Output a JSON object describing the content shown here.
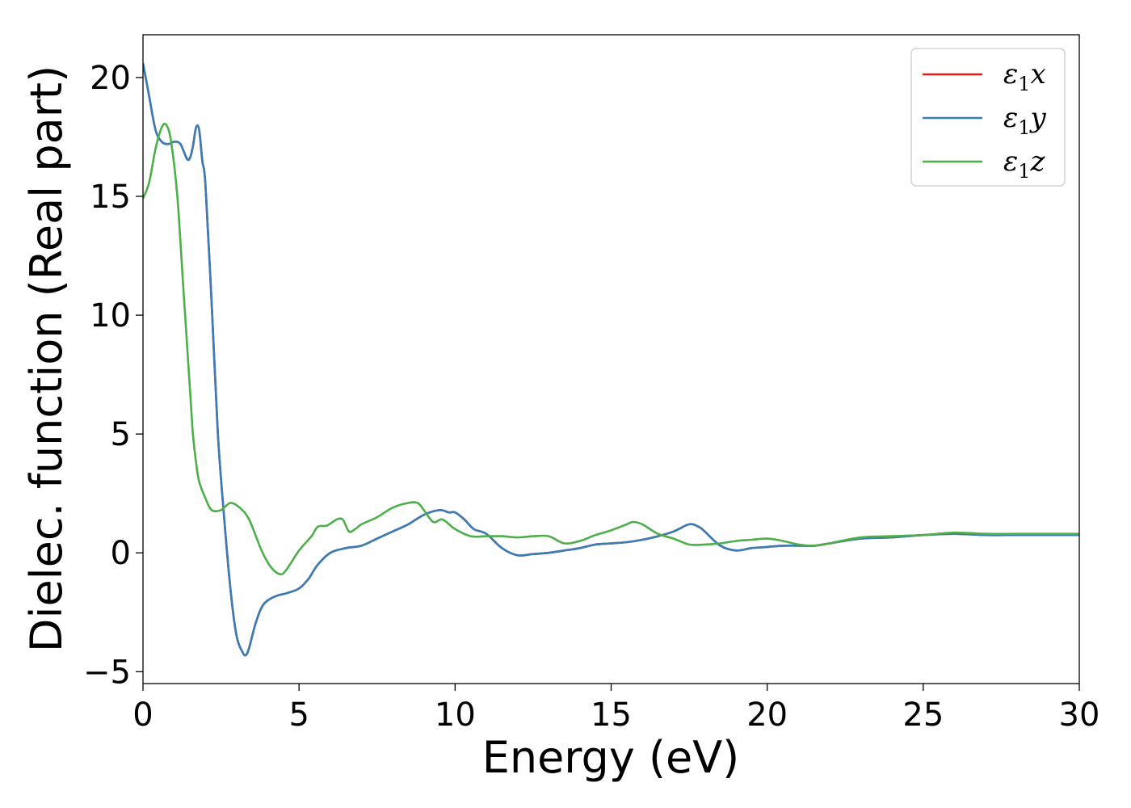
{
  "chart_data": {
    "type": "line",
    "title": "",
    "xlabel": "Energy (eV)",
    "ylabel": "Dielec. function (Real part)",
    "xlim": [
      0,
      30
    ],
    "ylim": [
      -5.5,
      21.8
    ],
    "xticks": [
      0,
      5,
      10,
      15,
      20,
      25,
      30
    ],
    "xtick_labels": [
      "0",
      "5",
      "10",
      "15",
      "20",
      "25",
      "30"
    ],
    "yticks": [
      -5,
      0,
      5,
      10,
      15,
      20
    ],
    "ytick_labels": [
      "−5",
      "0",
      "5",
      "10",
      "15",
      "20"
    ],
    "grid": false,
    "legend_position": "top-right",
    "colors": {
      "x": "#e41a1c",
      "y": "#377eb8",
      "z": "#4daf4a"
    },
    "series": [
      {
        "name": "ε₁x",
        "legend_base": "ε",
        "legend_sub": "1",
        "legend_suffix": "x",
        "color": "#e41a1c",
        "x": [
          0,
          0.2,
          0.4,
          0.6,
          0.8,
          1.0,
          1.2,
          1.4,
          1.5,
          1.6,
          1.7,
          1.8,
          1.9,
          2.0,
          2.2,
          2.4,
          2.6,
          2.8,
          3.0,
          3.2,
          3.3,
          3.4,
          3.6,
          3.8,
          4.0,
          4.3,
          4.6,
          5.0,
          5.3,
          5.6,
          6.0,
          6.5,
          7.0,
          7.5,
          8.0,
          8.5,
          9.0,
          9.5,
          9.8,
          10.0,
          10.3,
          10.6,
          11.0,
          11.5,
          12.0,
          12.5,
          13.0,
          13.5,
          14.0,
          14.5,
          15.0,
          15.5,
          16.0,
          16.5,
          17.0,
          17.5,
          17.8,
          18.0,
          18.5,
          19.0,
          19.5,
          20.0,
          20.5,
          21.0,
          21.5,
          22.0,
          23.0,
          24.0,
          25.0,
          26.0,
          27.0,
          28.0,
          29.0,
          30.0
        ],
        "values": [
          20.6,
          19.2,
          17.8,
          17.3,
          17.2,
          17.3,
          17.2,
          16.6,
          16.6,
          17.1,
          17.9,
          17.8,
          16.5,
          15.5,
          10.5,
          5.0,
          1.5,
          -1.5,
          -3.5,
          -4.2,
          -4.3,
          -4.0,
          -3.0,
          -2.3,
          -2.0,
          -1.8,
          -1.7,
          -1.5,
          -1.1,
          -0.5,
          0.0,
          0.2,
          0.3,
          0.6,
          0.9,
          1.2,
          1.6,
          1.8,
          1.7,
          1.7,
          1.4,
          1.0,
          0.8,
          0.2,
          -0.1,
          -0.05,
          0.0,
          0.1,
          0.2,
          0.35,
          0.4,
          0.45,
          0.55,
          0.7,
          0.9,
          1.2,
          1.1,
          0.9,
          0.3,
          0.1,
          0.2,
          0.25,
          0.3,
          0.3,
          0.3,
          0.4,
          0.6,
          0.65,
          0.75,
          0.8,
          0.75,
          0.75,
          0.75,
          0.75
        ]
      },
      {
        "name": "ε₁y",
        "legend_base": "ε",
        "legend_sub": "1",
        "legend_suffix": "y",
        "color": "#377eb8",
        "x": [
          0,
          0.2,
          0.4,
          0.6,
          0.8,
          1.0,
          1.2,
          1.4,
          1.5,
          1.6,
          1.7,
          1.8,
          1.9,
          2.0,
          2.2,
          2.4,
          2.6,
          2.8,
          3.0,
          3.2,
          3.3,
          3.4,
          3.6,
          3.8,
          4.0,
          4.3,
          4.6,
          5.0,
          5.3,
          5.6,
          6.0,
          6.5,
          7.0,
          7.5,
          8.0,
          8.5,
          9.0,
          9.5,
          9.8,
          10.0,
          10.3,
          10.6,
          11.0,
          11.5,
          12.0,
          12.5,
          13.0,
          13.5,
          14.0,
          14.5,
          15.0,
          15.5,
          16.0,
          16.5,
          17.0,
          17.5,
          17.8,
          18.0,
          18.5,
          19.0,
          19.5,
          20.0,
          20.5,
          21.0,
          21.5,
          22.0,
          23.0,
          24.0,
          25.0,
          26.0,
          27.0,
          28.0,
          29.0,
          30.0
        ],
        "values": [
          20.6,
          19.2,
          17.8,
          17.3,
          17.2,
          17.3,
          17.2,
          16.6,
          16.6,
          17.1,
          17.9,
          17.8,
          16.5,
          15.5,
          10.5,
          5.0,
          1.5,
          -1.5,
          -3.5,
          -4.2,
          -4.3,
          -4.0,
          -3.0,
          -2.3,
          -2.0,
          -1.8,
          -1.7,
          -1.5,
          -1.1,
          -0.5,
          0.0,
          0.2,
          0.3,
          0.6,
          0.9,
          1.2,
          1.6,
          1.8,
          1.7,
          1.7,
          1.4,
          1.0,
          0.8,
          0.2,
          -0.1,
          -0.05,
          0.0,
          0.1,
          0.2,
          0.35,
          0.4,
          0.45,
          0.55,
          0.7,
          0.9,
          1.2,
          1.1,
          0.9,
          0.3,
          0.1,
          0.2,
          0.25,
          0.3,
          0.3,
          0.3,
          0.4,
          0.6,
          0.65,
          0.75,
          0.8,
          0.75,
          0.75,
          0.75,
          0.75
        ]
      },
      {
        "name": "ε₁z",
        "legend_base": "ε",
        "legend_sub": "1",
        "legend_suffix": "z",
        "color": "#4daf4a",
        "x": [
          0,
          0.2,
          0.4,
          0.6,
          0.75,
          0.9,
          1.1,
          1.3,
          1.5,
          1.6,
          1.7,
          1.8,
          2.0,
          2.2,
          2.5,
          2.8,
          3.1,
          3.4,
          3.8,
          4.1,
          4.4,
          4.6,
          5.0,
          5.4,
          5.6,
          5.9,
          6.2,
          6.4,
          6.6,
          6.8,
          7.0,
          7.5,
          8.0,
          8.5,
          8.8,
          9.0,
          9.3,
          9.6,
          10.0,
          10.5,
          11.0,
          11.5,
          12.0,
          12.5,
          13.0,
          13.5,
          14.0,
          14.5,
          15.0,
          15.5,
          15.7,
          16.0,
          16.5,
          17.0,
          17.5,
          18.0,
          18.5,
          19.0,
          19.5,
          20.0,
          20.5,
          21.0,
          21.5,
          22.0,
          23.0,
          24.0,
          25.0,
          26.0,
          27.0,
          28.0,
          29.0,
          30.0
        ],
        "values": [
          14.9,
          15.6,
          17.0,
          17.9,
          18.0,
          17.3,
          15.0,
          11.0,
          7.0,
          5.0,
          3.8,
          3.0,
          2.3,
          1.8,
          1.8,
          2.1,
          1.9,
          1.4,
          0.1,
          -0.6,
          -0.9,
          -0.7,
          0.1,
          0.7,
          1.1,
          1.15,
          1.4,
          1.4,
          0.9,
          1.0,
          1.2,
          1.5,
          1.9,
          2.1,
          2.1,
          1.8,
          1.3,
          1.4,
          1.0,
          0.7,
          0.7,
          0.7,
          0.65,
          0.7,
          0.7,
          0.4,
          0.5,
          0.75,
          0.95,
          1.2,
          1.3,
          1.2,
          0.8,
          0.6,
          0.35,
          0.35,
          0.4,
          0.5,
          0.55,
          0.6,
          0.5,
          0.35,
          0.3,
          0.4,
          0.65,
          0.7,
          0.75,
          0.85,
          0.8,
          0.8,
          0.8,
          0.8
        ]
      }
    ]
  }
}
